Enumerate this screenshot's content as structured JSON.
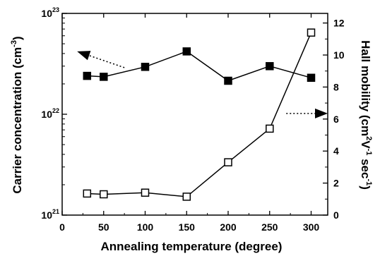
{
  "chart_data": {
    "type": "line",
    "xlabel": "Annealing temperature (degree)",
    "ylabel_left": [
      "Carrier concentration (cm",
      "-3",
      ")"
    ],
    "ylabel_right": [
      "Hall mobility (cm",
      "2",
      "V",
      "-1",
      " sec",
      "-1",
      ")"
    ],
    "xlim": [
      0,
      320
    ],
    "x_ticks": [
      0,
      50,
      100,
      150,
      200,
      250,
      300
    ],
    "y_left": {
      "scale": "log",
      "lim": [
        1e+21,
        1e+23
      ],
      "ticks": [
        {
          "base": "10",
          "exp": "21",
          "value": 1e+21
        },
        {
          "base": "10",
          "exp": "22",
          "value": 1e+22
        },
        {
          "base": "10",
          "exp": "23",
          "value": 1e+23
        }
      ]
    },
    "y_right": {
      "scale": "linear",
      "lim": [
        0,
        12.6
      ],
      "ticks": [
        0,
        2,
        4,
        6,
        8,
        10,
        12
      ]
    },
    "series": [
      {
        "axis": "left",
        "marker": "filled-square",
        "x": [
          30,
          50,
          100,
          150,
          200,
          250,
          300
        ],
        "y": [
          2.4e+22,
          2.35e+22,
          2.95e+22,
          4.2e+22,
          2.15e+22,
          3e+22,
          2.3e+22
        ]
      },
      {
        "axis": "right",
        "marker": "open-square",
        "x": [
          30,
          50,
          100,
          150,
          200,
          250,
          300
        ],
        "y": [
          1.35,
          1.3,
          1.4,
          1.15,
          3.3,
          5.4,
          11.4
        ]
      }
    ],
    "annotations": [
      {
        "type": "arrow",
        "points_to": "left-axis",
        "from": [
          75,
          2.9e+22
        ],
        "to": [
          18,
          4.2e+22
        ]
      },
      {
        "type": "arrow",
        "points_to": "right-axis",
        "from": [
          270,
          6.35
        ],
        "to": [
          320,
          6.35
        ]
      }
    ],
    "grid": false,
    "legend": "none",
    "colors": {
      "line": "#000000",
      "background": "#ffffff"
    }
  }
}
